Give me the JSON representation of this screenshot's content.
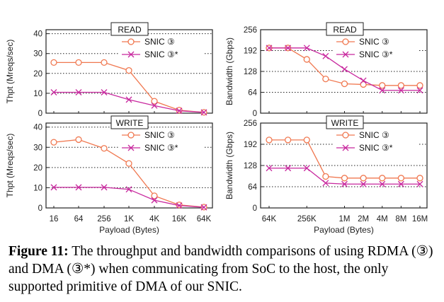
{
  "caption": {
    "label": "Figure 11:",
    "text": " The throughput and bandwidth comparisons of using RDMA (③) and DMA (③*) when communicating from SoC to the host, the only supported primitive of DMA of our SNIC."
  },
  "colors": {
    "snic": "#f07850",
    "snic_star": "#c8289e"
  },
  "chart_data": [
    {
      "type": "line",
      "panel": "top-left",
      "title": "READ",
      "ylabel": "Thpt (Mreqs/sec)",
      "xlabel": "",
      "categories": [
        "16",
        "64",
        "256",
        "1K",
        "4K",
        "16K",
        "64K"
      ],
      "yticks": [
        0,
        10,
        20,
        30,
        40
      ],
      "ylim": [
        0,
        42
      ],
      "grid": true,
      "legend": "top-right",
      "series": [
        {
          "name": "SNIC ③",
          "marker": "circle",
          "values": [
            25.5,
            25.5,
            25.5,
            21.5,
            6.0,
            1.5,
            0.4
          ]
        },
        {
          "name": "SNIC ③*",
          "marker": "x",
          "values": [
            10.5,
            10.5,
            10.5,
            6.8,
            3.8,
            1.2,
            0.4
          ]
        }
      ]
    },
    {
      "type": "line",
      "panel": "bottom-left",
      "title": "WRITE",
      "ylabel": "Thpt (Mreqs/sec)",
      "xlabel": "Payload (Bytes)",
      "categories": [
        "16",
        "64",
        "256",
        "1K",
        "4K",
        "16K",
        "64K"
      ],
      "yticks": [
        0,
        10,
        20,
        30,
        40
      ],
      "ylim": [
        0,
        42
      ],
      "grid": true,
      "legend": "top-right",
      "series": [
        {
          "name": "SNIC ③",
          "marker": "circle",
          "values": [
            32.5,
            33.8,
            29.5,
            22.0,
            6.0,
            1.5,
            0.4
          ]
        },
        {
          "name": "SNIC ③*",
          "marker": "x",
          "values": [
            10.2,
            10.2,
            10.2,
            9.2,
            3.8,
            1.2,
            0.3
          ]
        }
      ]
    },
    {
      "type": "line",
      "panel": "top-right",
      "title": "READ",
      "ylabel": "Bandwidth (Gbps)",
      "xlabel": "",
      "x": [
        16,
        17,
        18,
        19,
        20,
        21,
        22,
        23,
        24
      ],
      "xticks": [
        16,
        18,
        20,
        21,
        22,
        23,
        24
      ],
      "xticklabels": [
        "64K",
        "256K",
        "1M",
        "2M",
        "4M",
        "8M",
        "16M"
      ],
      "yticks": [
        0,
        64,
        128,
        192,
        256
      ],
      "ylim": [
        0,
        256
      ],
      "grid": true,
      "legend": "top-right",
      "series": [
        {
          "name": "SNIC ③",
          "marker": "circle",
          "values": [
            200,
            200,
            165,
            105,
            90,
            88,
            85,
            85,
            85
          ]
        },
        {
          "name": "SNIC ③*",
          "marker": "x",
          "values": [
            200,
            200,
            200,
            175,
            135,
            100,
            70,
            70,
            70
          ]
        }
      ]
    },
    {
      "type": "line",
      "panel": "bottom-right",
      "title": "WRITE",
      "ylabel": "Bandwidth (Gbps)",
      "xlabel": "Payload (Bytes)",
      "x": [
        16,
        17,
        18,
        19,
        20,
        21,
        22,
        23,
        24
      ],
      "xticks": [
        16,
        18,
        20,
        21,
        22,
        23,
        24
      ],
      "xticklabels": [
        "64K",
        "256K",
        "1M",
        "2M",
        "4M",
        "8M",
        "16M"
      ],
      "yticks": [
        0,
        64,
        128,
        192,
        256
      ],
      "ylim": [
        0,
        256
      ],
      "grid": true,
      "legend": "top-right",
      "series": [
        {
          "name": "SNIC ③",
          "marker": "circle",
          "values": [
            205,
            205,
            205,
            95,
            90,
            90,
            90,
            90,
            90
          ]
        },
        {
          "name": "SNIC ③*",
          "marker": "x",
          "values": [
            120,
            120,
            120,
            75,
            72,
            72,
            72,
            72,
            72
          ]
        }
      ]
    }
  ]
}
